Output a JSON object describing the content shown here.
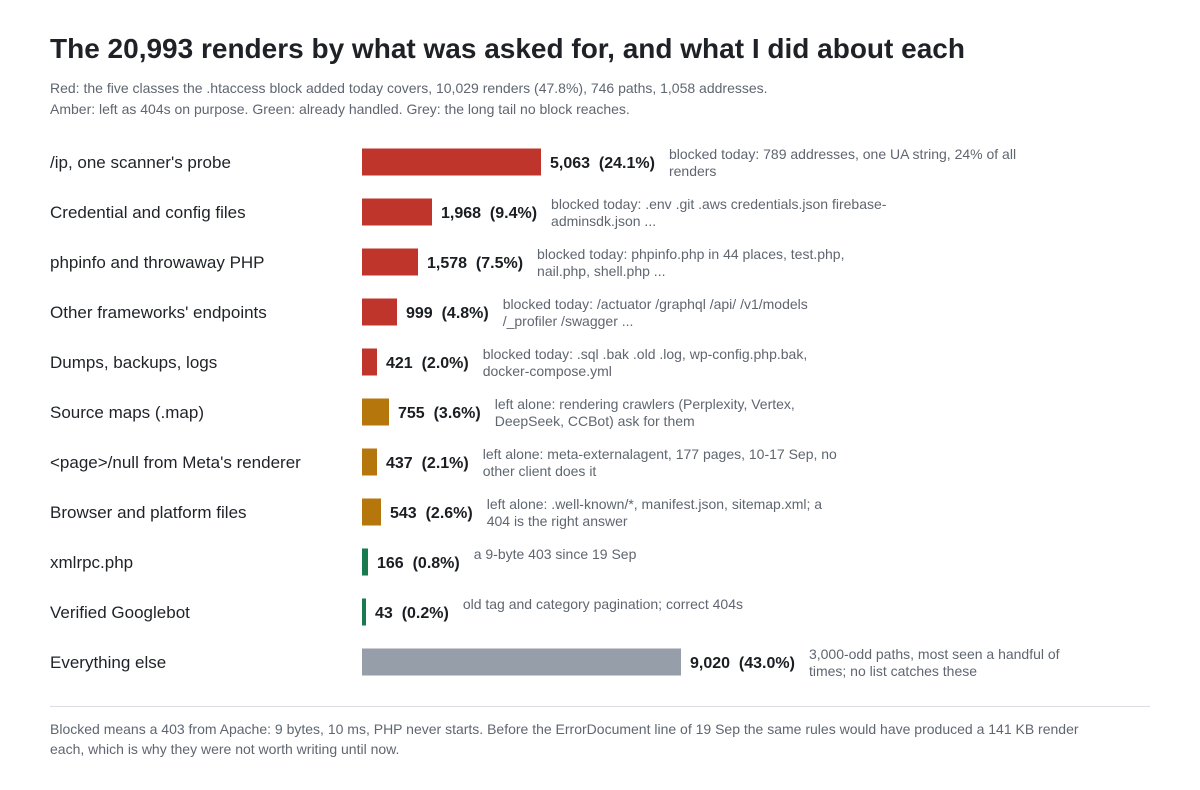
{
  "title": "The 20,993 renders by what was asked for, and what I did about each",
  "subtitle": [
    "Red: the five classes the .htaccess block added today covers, 10,029 renders (47.8%), 746 paths, 1,058 addresses.",
    "Amber: left as 404s on purpose. Green: already handled. Grey: the long tail no block reaches."
  ],
  "footnote": "Blocked means a 403 from Apache: 9 bytes, 10 ms, PHP never starts. Before the ErrorDocument line of 19 Sep the same rules would have produced a 141 KB render each, which is why they were not worth writing until now.",
  "colors": {
    "blocked": "#c0352b",
    "left_alone": "#b5760c",
    "handled": "#1a7a4f",
    "tail": "#969ea9"
  },
  "chart_data": {
    "type": "bar",
    "orientation": "horizontal",
    "title": "The 20,993 renders by what was asked for, and what I did about each",
    "xlabel": "",
    "ylabel": "",
    "grid": false,
    "total": 20993,
    "categories": [
      "/ip, one scanner's probe",
      "Credential and config files",
      "phpinfo and throwaway PHP",
      "Other frameworks' endpoints",
      "Dumps, backups, logs",
      "Source maps (.map)",
      "<page>/null from Meta's renderer",
      "Browser and platform files",
      "xmlrpc.php",
      "Verified Googlebot",
      "Everything else"
    ],
    "values": [
      5063,
      1968,
      1578,
      999,
      421,
      755,
      437,
      543,
      166,
      43,
      9020
    ],
    "value_labels": [
      "5,063  (24.1%)",
      "1,968  (9.4%)",
      "1,578  (7.5%)",
      "999  (4.8%)",
      "421  (2.0%)",
      "755  (3.6%)",
      "437  (2.1%)",
      "543  (2.6%)",
      "166  (0.8%)",
      "43  (0.2%)",
      "9,020  (43.0%)"
    ],
    "classes": [
      "blocked",
      "blocked",
      "blocked",
      "blocked",
      "blocked",
      "left_alone",
      "left_alone",
      "left_alone",
      "handled",
      "handled",
      "tail"
    ],
    "notes": [
      [
        "blocked today: 789 addresses, one UA string, 24% of all",
        "renders"
      ],
      [
        "blocked today: .env .git .aws credentials.json firebase-",
        "adminsdk.json ..."
      ],
      [
        "blocked today: phpinfo.php in 44 places, test.php,",
        "nail.php, shell.php ..."
      ],
      [
        "blocked today: /actuator /graphql /api/ /v1/models",
        "/_profiler /swagger ..."
      ],
      [
        "blocked today: .sql .bak .old .log, wp-config.php.bak,",
        "docker-compose.yml"
      ],
      [
        "left alone: rendering crawlers (Perplexity, Vertex,",
        "DeepSeek, CCBot) ask for them"
      ],
      [
        "left alone: meta-externalagent, 177 pages, 10-17 Sep, no",
        "other client does it"
      ],
      [
        "left alone: .well-known/*, manifest.json, sitemap.xml; a",
        "404 is the right answer"
      ],
      [
        "a 9-byte 403 since 19 Sep"
      ],
      [
        "old tag and category pagination; correct 404s"
      ],
      [
        "3,000-odd paths, most seen a handful of",
        "times; no list catches these"
      ]
    ]
  }
}
